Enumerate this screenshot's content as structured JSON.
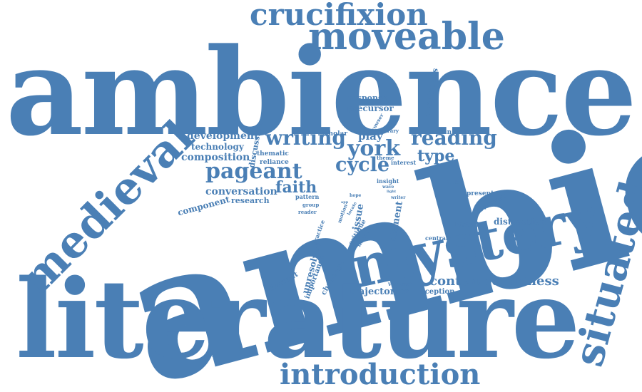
{
  "colors": {
    "word": "#4a7fb5",
    "background": "#ffffff"
  },
  "words": [
    {
      "text": "ambient",
      "weight": 100
    },
    {
      "text": "ambience",
      "weight": 100
    },
    {
      "text": "literature",
      "weight": 95
    },
    {
      "text": "mystery",
      "weight": 50
    },
    {
      "text": "medieval",
      "weight": 35
    },
    {
      "text": "situated",
      "weight": 33
    },
    {
      "text": "moveable",
      "weight": 30
    },
    {
      "text": "crucifixion",
      "weight": 28
    },
    {
      "text": "introduction",
      "weight": 27
    },
    {
      "text": "pageant",
      "weight": 18
    },
    {
      "text": "writing",
      "weight": 18
    },
    {
      "text": "reading",
      "weight": 18
    },
    {
      "text": "york",
      "weight": 18
    },
    {
      "text": "cycle",
      "weight": 16
    },
    {
      "text": "faith",
      "weight": 14
    },
    {
      "text": "contemporariness",
      "weight": 13
    },
    {
      "text": "type",
      "weight": 13
    },
    {
      "text": "development",
      "weight": 10
    },
    {
      "text": "composition",
      "weight": 10
    },
    {
      "text": "conversation",
      "weight": 10
    },
    {
      "text": "technology",
      "weight": 8
    },
    {
      "text": "component",
      "weight": 8
    },
    {
      "text": "trajectories",
      "weight": 8
    },
    {
      "text": "play",
      "weight": 9
    },
    {
      "text": "element",
      "weight": 9
    },
    {
      "text": "unresolved",
      "weight": 8
    },
    {
      "text": "issue",
      "weight": 8
    },
    {
      "text": "distraction",
      "weight": 7
    },
    {
      "text": "research",
      "weight": 7
    },
    {
      "text": "discussion",
      "weight": 7
    },
    {
      "text": "precursor",
      "weight": 7
    },
    {
      "text": "contiguous",
      "weight": 7
    },
    {
      "text": "response",
      "weight": 6
    },
    {
      "text": "importance",
      "weight": 6
    },
    {
      "text": "aberrant",
      "weight": 6
    },
    {
      "text": "challenge",
      "weight": 6
    },
    {
      "text": "reviewer",
      "weight": 6
    },
    {
      "text": "reception",
      "weight": 6
    },
    {
      "text": "present",
      "weight": 5
    },
    {
      "text": "historic",
      "weight": 5
    },
    {
      "text": "thematic",
      "weight": 5
    },
    {
      "text": "definition",
      "weight": 5
    },
    {
      "text": "scholar",
      "weight": 5
    },
    {
      "text": "reliance",
      "weight": 5
    },
    {
      "text": "interest",
      "weight": 5
    },
    {
      "text": "critique",
      "weight": 5
    },
    {
      "text": "pattern",
      "weight": 5
    },
    {
      "text": "central",
      "weight": 5
    },
    {
      "text": "various",
      "weight": 5
    },
    {
      "text": "insight",
      "weight": 5
    },
    {
      "text": "group",
      "weight": 5
    },
    {
      "text": "motion",
      "weight": 5
    },
    {
      "text": "practice",
      "weight": 5
    },
    {
      "text": "history",
      "weight": 5
    },
    {
      "text": "browser",
      "weight": 4
    },
    {
      "text": "literary",
      "weight": 4
    },
    {
      "text": "theme",
      "weight": 4
    },
    {
      "text": "wave",
      "weight": 4
    },
    {
      "text": "reader",
      "weight": 4
    },
    {
      "text": "locate",
      "weight": 4
    },
    {
      "text": "hope",
      "weight": 3
    },
    {
      "text": "writer",
      "weight": 4
    },
    {
      "text": "book",
      "weight": 3
    },
    {
      "text": "light",
      "weight": 3
    },
    {
      "text": "app",
      "weight": 3
    }
  ]
}
